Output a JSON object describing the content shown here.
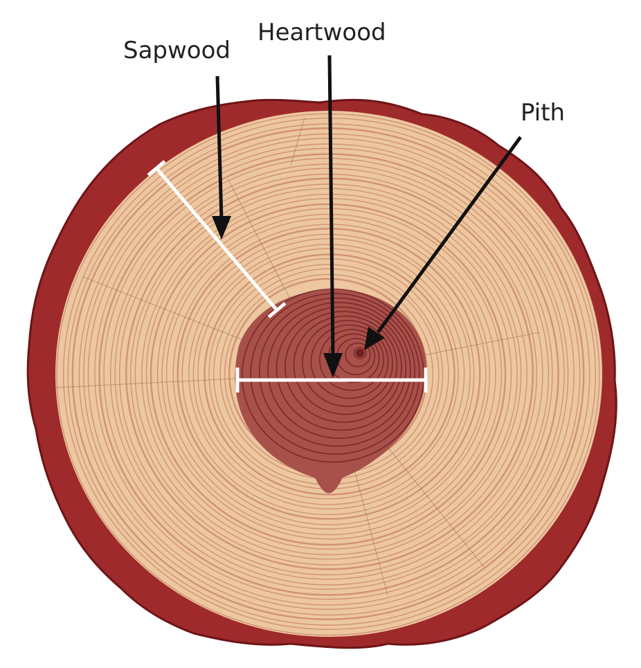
{
  "labels": {
    "sapwood": "Sapwood",
    "heartwood": "Heartwood",
    "pith": "Pith"
  },
  "colors": {
    "bark": "#9e2a2b",
    "bark_dark": "#6e1416",
    "sapwood": "#ecc7a0",
    "sapwood_ring": "#c88063",
    "heartwood": "#a8504a",
    "heartwood_ring": "#6d1f1f",
    "marker": "#ffffff",
    "arrow": "#111111",
    "text": "#231f20"
  },
  "icons": {
    "sapwood_arrow": "arrow-down-icon",
    "heartwood_arrow": "arrow-down-icon",
    "pith_arrow": "arrow-down-left-icon"
  }
}
